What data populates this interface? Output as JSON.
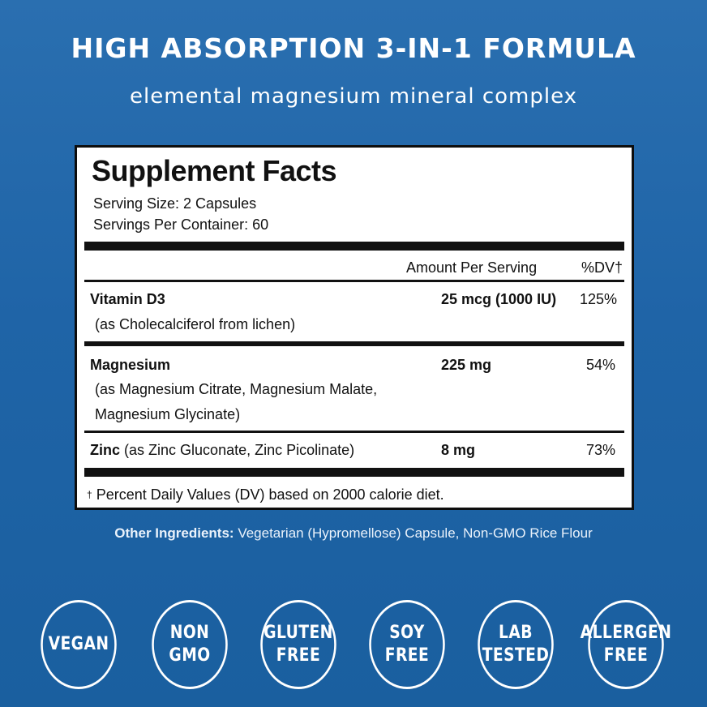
{
  "header": {
    "headline": "HIGH ABSORPTION 3-IN-1 FORMULA",
    "subheadline": "elemental magnesium mineral complex"
  },
  "facts": {
    "title": "Supplement Facts",
    "serving_size": "Serving Size: 2 Capsules",
    "servings_per_container": "Servings Per Container: 60",
    "col_amount": "Amount Per Serving",
    "col_dv": "%DV†",
    "rows": [
      {
        "name": "Vitamin D3",
        "detail": "(as Cholecalciferol from lichen)",
        "amount": "25 mcg (1000 IU)",
        "dv": "125%"
      },
      {
        "name": "Magnesium",
        "detail_line1": "(as Magnesium Citrate, Magnesium Malate,",
        "detail_line2": "Magnesium Glycinate)",
        "amount": "225 mg",
        "dv": "54%"
      },
      {
        "name": "Zinc",
        "detail": "(as Zinc Gluconate, Zinc Picolinate)",
        "amount": "8 mg",
        "dv": "73%"
      }
    ],
    "footnote_mark": "†",
    "footnote": "Percent Daily Values (DV) based on 2000 calorie diet."
  },
  "other_ingredients": {
    "label": "Other Ingredients:",
    "text": "Vegetarian (Hypromellose) Capsule, Non-GMO Rice Flour"
  },
  "badges": [
    {
      "text": "VEGAN"
    },
    {
      "text": "NON\nGMO"
    },
    {
      "text": "GLUTEN\nFREE"
    },
    {
      "text": "SOY\nFREE"
    },
    {
      "text": "LAB\nTESTED"
    },
    {
      "text": "ALLERGEN\nFREE"
    }
  ],
  "colors": {
    "background": "#1f64a7",
    "panel": "#ffffff",
    "text_dark": "#111111"
  }
}
